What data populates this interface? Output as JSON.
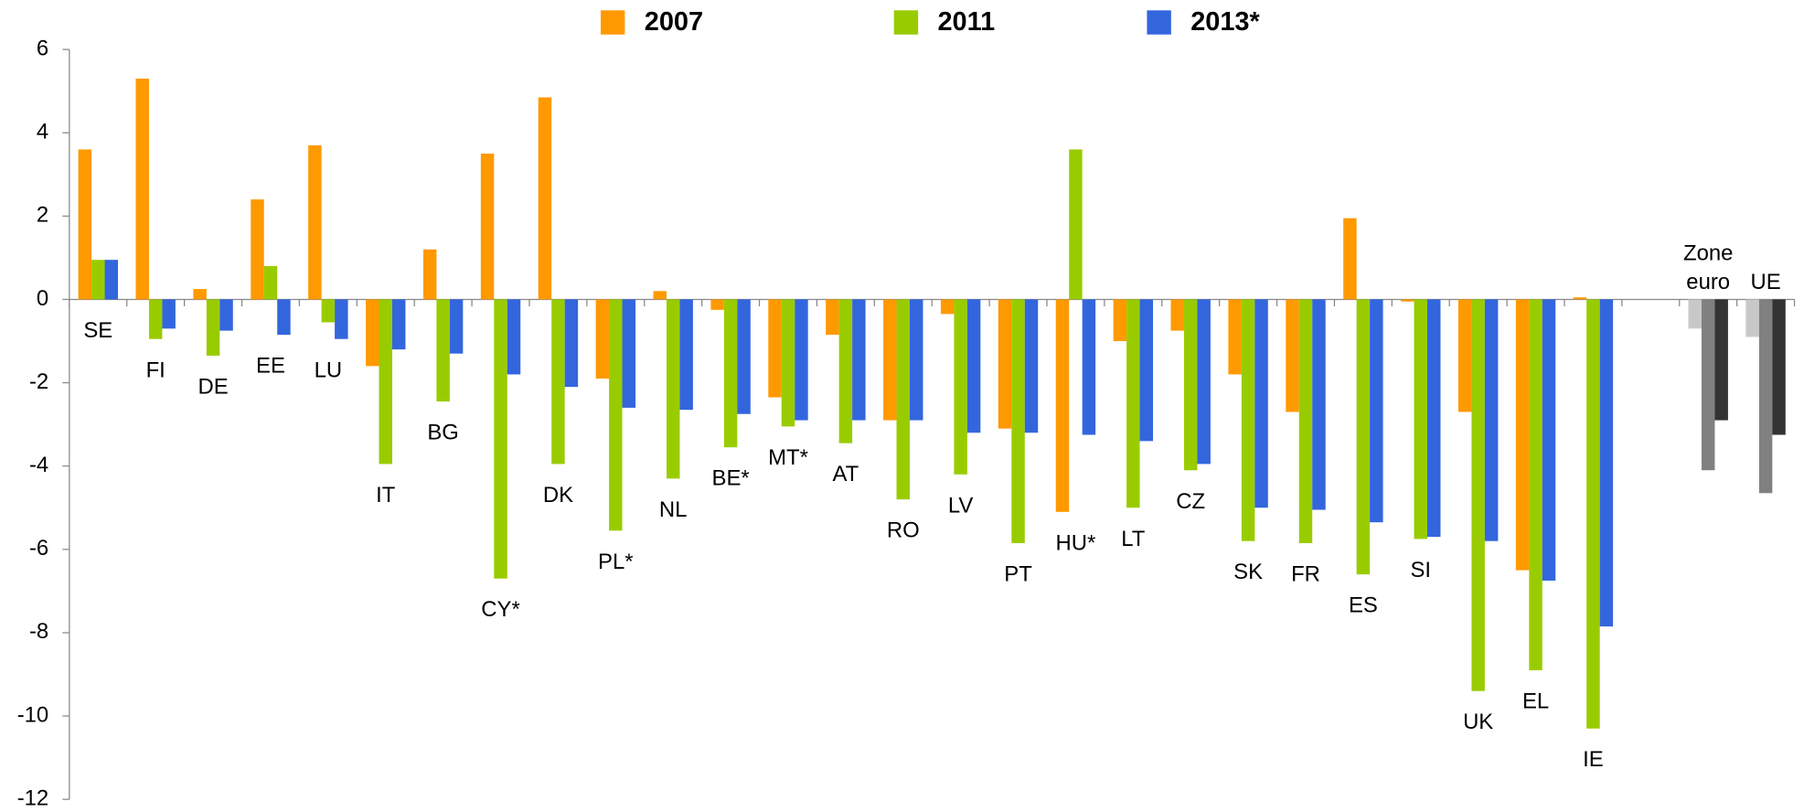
{
  "chart_data": {
    "type": "bar",
    "categories": [
      "SE",
      "FI",
      "DE",
      "EE",
      "LU",
      "IT",
      "BG",
      "CY*",
      "DK",
      "PL*",
      "NL",
      "BE*",
      "MT*",
      "AT",
      "RO",
      "LV",
      "PT",
      "HU*",
      "LT",
      "CZ",
      "SK",
      "FR",
      "ES",
      "SI",
      "UK",
      "EL",
      "IE",
      null,
      "Zone euro",
      "UE"
    ],
    "series": [
      {
        "name": "2007",
        "color": "#ff9900",
        "colors": [
          "#ff9900",
          "#ff9900",
          "#ff9900",
          "#ff9900",
          "#ff9900",
          "#ff9900",
          "#ff9900",
          "#ff9900",
          "#ff9900",
          "#ff9900",
          "#ff9900",
          "#ff9900",
          "#ff9900",
          "#ff9900",
          "#ff9900",
          "#ff9900",
          "#ff9900",
          "#ff9900",
          "#ff9900",
          "#ff9900",
          "#ff9900",
          "#ff9900",
          "#ff9900",
          "#ff9900",
          "#ff9900",
          "#ff9900",
          "#ff9900",
          "#ff9900",
          "#c8c8c8",
          "#c8c8c8"
        ],
        "values": [
          3.6,
          5.3,
          0.25,
          2.4,
          3.7,
          -1.6,
          1.2,
          3.5,
          4.85,
          -1.9,
          0.2,
          -0.25,
          -2.35,
          -0.85,
          -2.9,
          -0.35,
          -3.1,
          -5.1,
          -1.0,
          -0.75,
          -1.8,
          -2.7,
          1.95,
          -0.05,
          -2.7,
          -6.5,
          0.05,
          null,
          -0.7,
          -0.9
        ]
      },
      {
        "name": "2011",
        "color": "#99cc00",
        "colors": [
          "#99cc00",
          "#99cc00",
          "#99cc00",
          "#99cc00",
          "#99cc00",
          "#99cc00",
          "#99cc00",
          "#99cc00",
          "#99cc00",
          "#99cc00",
          "#99cc00",
          "#99cc00",
          "#99cc00",
          "#99cc00",
          "#99cc00",
          "#99cc00",
          "#99cc00",
          "#99cc00",
          "#99cc00",
          "#99cc00",
          "#99cc00",
          "#99cc00",
          "#99cc00",
          "#99cc00",
          "#99cc00",
          "#99cc00",
          "#99cc00",
          "#99cc00",
          "#808080",
          "#808080"
        ],
        "values": [
          0.95,
          -0.95,
          -1.35,
          0.8,
          -0.55,
          -3.95,
          -2.45,
          -6.7,
          -3.95,
          -5.55,
          -4.3,
          -3.55,
          -3.05,
          -3.45,
          -4.8,
          -4.2,
          -5.85,
          3.6,
          -5.0,
          -4.1,
          -5.8,
          -5.85,
          -6.6,
          -5.75,
          -9.4,
          -8.9,
          -10.3,
          null,
          -4.1,
          -4.65
        ]
      },
      {
        "name": "2013*",
        "color": "#3366dd",
        "colors": [
          "#3366dd",
          "#3366dd",
          "#3366dd",
          "#3366dd",
          "#3366dd",
          "#3366dd",
          "#3366dd",
          "#3366dd",
          "#3366dd",
          "#3366dd",
          "#3366dd",
          "#3366dd",
          "#3366dd",
          "#3366dd",
          "#3366dd",
          "#3366dd",
          "#3366dd",
          "#3366dd",
          "#3366dd",
          "#3366dd",
          "#3366dd",
          "#3366dd",
          "#3366dd",
          "#3366dd",
          "#3366dd",
          "#3366dd",
          "#3366dd",
          "#3366dd",
          "#333333",
          "#333333"
        ],
        "values": [
          0.95,
          -0.7,
          -0.75,
          -0.85,
          -0.95,
          -1.2,
          -1.3,
          -1.8,
          -2.1,
          -2.6,
          -2.65,
          -2.75,
          -2.9,
          -2.9,
          -2.9,
          -3.2,
          -3.2,
          -3.25,
          -3.4,
          -3.95,
          -5.0,
          -5.05,
          -5.35,
          -5.7,
          -5.8,
          -6.75,
          -7.85,
          null,
          -2.9,
          -3.25
        ]
      }
    ],
    "ylim": [
      -12,
      6
    ],
    "yticks": [
      -12,
      -10,
      -8,
      -6,
      -4,
      -2,
      0,
      2,
      4,
      6
    ]
  }
}
